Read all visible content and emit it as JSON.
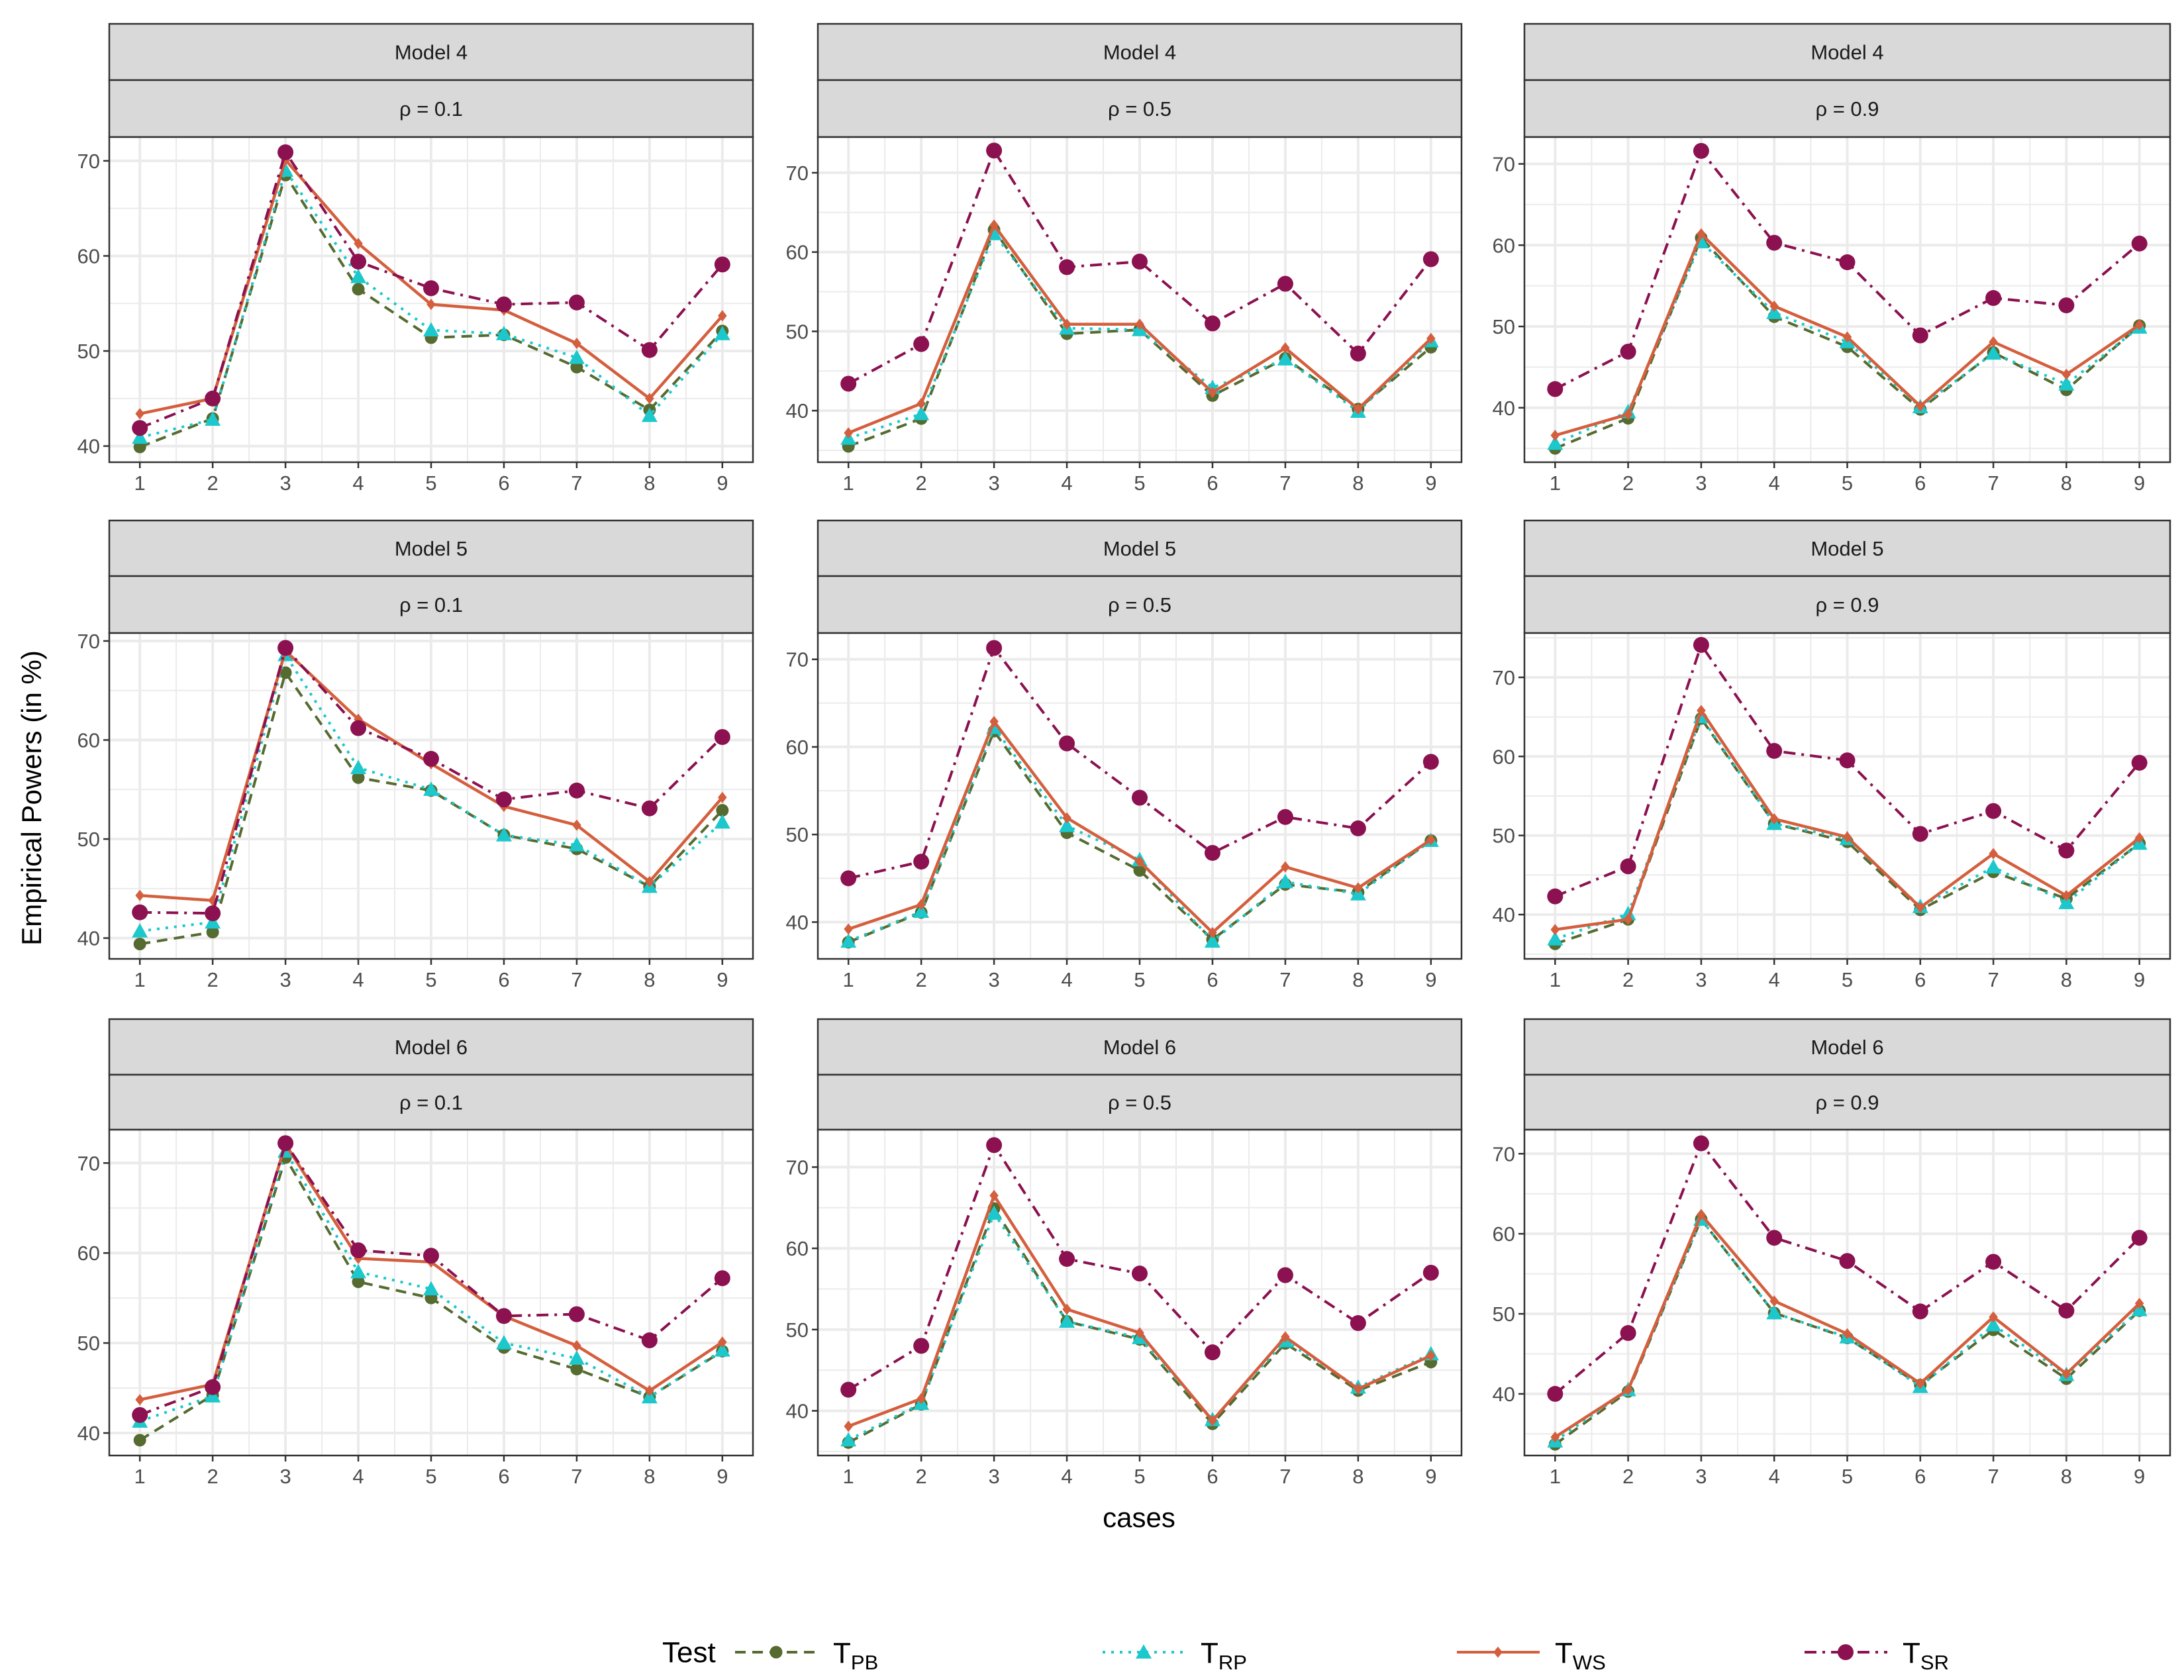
{
  "chart_data": {
    "type": "line",
    "xlabel": "cases",
    "ylabel": "Empirical Powers (in %)",
    "x": [
      1,
      2,
      3,
      4,
      5,
      6,
      7,
      8,
      9
    ],
    "legend": {
      "title": "Test",
      "placement": "bottom",
      "items": [
        {
          "key": "PB",
          "base": "T",
          "sub": "PB",
          "color": "#556B2F",
          "line": "dashed",
          "marker": "circle"
        },
        {
          "key": "RP",
          "base": "T",
          "sub": "RP",
          "color": "#1CC8CC",
          "line": "dotted",
          "marker": "triangle"
        },
        {
          "key": "WS",
          "base": "T",
          "sub": "WS",
          "color": "#D45F3E",
          "line": "solid",
          "marker": "diamond"
        },
        {
          "key": "SR",
          "base": "T",
          "sub": "SR",
          "color": "#8B1150",
          "line": "dotdash",
          "marker": "circle"
        }
      ]
    },
    "grid": true,
    "panels": [
      {
        "model": "Model 4",
        "rho": "ρ = 0.1",
        "ylim": [
          38.3,
          72.5
        ],
        "yticks": [
          40,
          50,
          60,
          70
        ],
        "series": {
          "PB": [
            39.9,
            42.9,
            68.5,
            56.5,
            51.4,
            51.7,
            48.3,
            43.8,
            52.1
          ],
          "RP": [
            40.9,
            42.8,
            69.0,
            57.8,
            52.2,
            51.8,
            49.3,
            43.2,
            51.8
          ],
          "WS": [
            43.4,
            45.0,
            70.1,
            61.3,
            54.9,
            54.3,
            50.8,
            45.0,
            53.7
          ],
          "SR": [
            41.9,
            45.0,
            70.9,
            59.4,
            56.6,
            54.9,
            55.1,
            50.1,
            59.1
          ]
        }
      },
      {
        "model": "Model 4",
        "rho": "ρ = 0.5",
        "ylim": [
          33.5,
          74.5
        ],
        "yticks": [
          40,
          50,
          60,
          70
        ],
        "series": {
          "PB": [
            35.5,
            39.0,
            62.8,
            49.7,
            50.2,
            41.9,
            46.6,
            40.2,
            48.0
          ],
          "RP": [
            36.5,
            39.6,
            62.3,
            50.4,
            50.2,
            42.9,
            46.5,
            39.9,
            48.8
          ],
          "WS": [
            37.2,
            40.9,
            63.4,
            50.9,
            50.9,
            42.3,
            47.9,
            40.2,
            49.1
          ],
          "SR": [
            43.4,
            48.4,
            72.8,
            58.1,
            58.8,
            51.0,
            56.0,
            47.2,
            59.1
          ]
        }
      },
      {
        "model": "Model 4",
        "rho": "ρ = 0.9",
        "ylim": [
          33.3,
          73.3
        ],
        "yticks": [
          40,
          50,
          60,
          70
        ],
        "series": {
          "PB": [
            35.0,
            38.7,
            60.9,
            51.2,
            47.5,
            39.8,
            46.8,
            42.2,
            50.1
          ],
          "RP": [
            35.6,
            39.5,
            60.4,
            51.7,
            48.1,
            40.1,
            46.7,
            42.9,
            49.9
          ],
          "WS": [
            36.6,
            39.2,
            61.4,
            52.5,
            48.7,
            40.2,
            48.1,
            44.1,
            50.2
          ],
          "SR": [
            42.3,
            46.9,
            71.6,
            60.3,
            57.9,
            48.9,
            53.5,
            52.6,
            60.2
          ]
        }
      },
      {
        "model": "Model 5",
        "rho": "ρ = 0.1",
        "ylim": [
          37.9,
          70.8
        ],
        "yticks": [
          40,
          50,
          60,
          70
        ],
        "series": {
          "PB": [
            39.4,
            40.6,
            66.8,
            56.2,
            54.9,
            50.4,
            49.0,
            45.2,
            52.9
          ],
          "RP": [
            40.7,
            41.6,
            68.6,
            57.2,
            55.0,
            50.4,
            49.4,
            45.2,
            51.7
          ],
          "WS": [
            44.3,
            43.8,
            69.0,
            62.1,
            57.6,
            53.3,
            51.4,
            45.7,
            54.2
          ],
          "SR": [
            42.6,
            42.5,
            69.3,
            61.2,
            58.1,
            54.0,
            54.9,
            53.1,
            60.3
          ]
        }
      },
      {
        "model": "Model 5",
        "rho": "ρ = 0.5",
        "ylim": [
          35.8,
          73.0
        ],
        "yticks": [
          40,
          50,
          60,
          70
        ],
        "series": {
          "PB": [
            37.7,
            41.1,
            61.8,
            50.2,
            45.9,
            38.0,
            44.3,
            43.4,
            49.3
          ],
          "RP": [
            37.8,
            41.2,
            62.2,
            51.0,
            47.1,
            37.8,
            44.6,
            43.2,
            49.3
          ],
          "WS": [
            39.2,
            42.0,
            62.9,
            51.9,
            46.9,
            38.8,
            46.3,
            43.9,
            49.4
          ],
          "SR": [
            45.0,
            46.9,
            71.3,
            60.4,
            54.2,
            47.9,
            52.0,
            50.7,
            58.3
          ]
        }
      },
      {
        "model": "Model 5",
        "rho": "ρ = 0.9",
        "ylim": [
          34.4,
          75.6
        ],
        "yticks": [
          40,
          50,
          60,
          70
        ],
        "series": {
          "PB": [
            36.3,
            39.4,
            64.8,
            51.5,
            49.2,
            40.6,
            45.4,
            42.0,
            49.0
          ],
          "RP": [
            36.9,
            40.1,
            65.0,
            51.5,
            49.6,
            41.0,
            46.0,
            41.5,
            49.0
          ],
          "WS": [
            38.1,
            39.4,
            65.8,
            52.1,
            49.8,
            40.9,
            47.7,
            42.4,
            49.7
          ],
          "SR": [
            42.3,
            46.1,
            74.1,
            60.7,
            59.5,
            50.2,
            53.1,
            48.1,
            59.2
          ]
        }
      },
      {
        "model": "Model 6",
        "rho": "ρ = 0.1",
        "ylim": [
          37.5,
          73.7
        ],
        "yticks": [
          40,
          50,
          60,
          70
        ],
        "series": {
          "PB": [
            39.2,
            44.2,
            70.6,
            56.8,
            55.0,
            49.5,
            47.1,
            44.0,
            49.1
          ],
          "RP": [
            41.3,
            44.1,
            71.3,
            57.9,
            56.0,
            50.0,
            48.3,
            44.0,
            49.2
          ],
          "WS": [
            43.7,
            45.4,
            72.1,
            59.4,
            59.0,
            53.0,
            49.7,
            44.7,
            50.1
          ],
          "SR": [
            42.0,
            45.1,
            72.2,
            60.3,
            59.7,
            53.0,
            53.2,
            50.3,
            57.2
          ]
        }
      },
      {
        "model": "Model 6",
        "rho": "ρ = 0.5",
        "ylim": [
          34.5,
          74.6
        ],
        "yticks": [
          40,
          50,
          60,
          70
        ],
        "series": {
          "PB": [
            36.1,
            40.8,
            64.9,
            51.0,
            48.8,
            38.4,
            48.3,
            42.5,
            46.0
          ],
          "RP": [
            36.4,
            40.9,
            64.3,
            51.0,
            49.0,
            38.9,
            48.6,
            42.9,
            47.0
          ],
          "WS": [
            38.1,
            41.5,
            66.5,
            52.5,
            49.6,
            38.8,
            49.1,
            42.7,
            46.8
          ],
          "SR": [
            42.6,
            48.0,
            72.7,
            58.7,
            56.9,
            47.2,
            56.7,
            50.8,
            57.0
          ]
        }
      },
      {
        "model": "Model 6",
        "rho": "ρ = 0.9",
        "ylim": [
          32.3,
          73.0
        ],
        "yticks": [
          40,
          50,
          60,
          70
        ],
        "series": {
          "PB": [
            33.7,
            40.3,
            61.8,
            50.1,
            47.0,
            41.1,
            48.0,
            41.9,
            50.4
          ],
          "RP": [
            34.1,
            40.5,
            61.8,
            50.1,
            47.1,
            40.9,
            48.6,
            42.4,
            50.5
          ],
          "WS": [
            34.6,
            40.5,
            62.4,
            51.6,
            47.5,
            41.3,
            49.6,
            42.5,
            51.3
          ],
          "SR": [
            40.0,
            47.6,
            71.3,
            59.5,
            56.6,
            50.3,
            56.5,
            50.4,
            59.5
          ]
        }
      }
    ]
  }
}
